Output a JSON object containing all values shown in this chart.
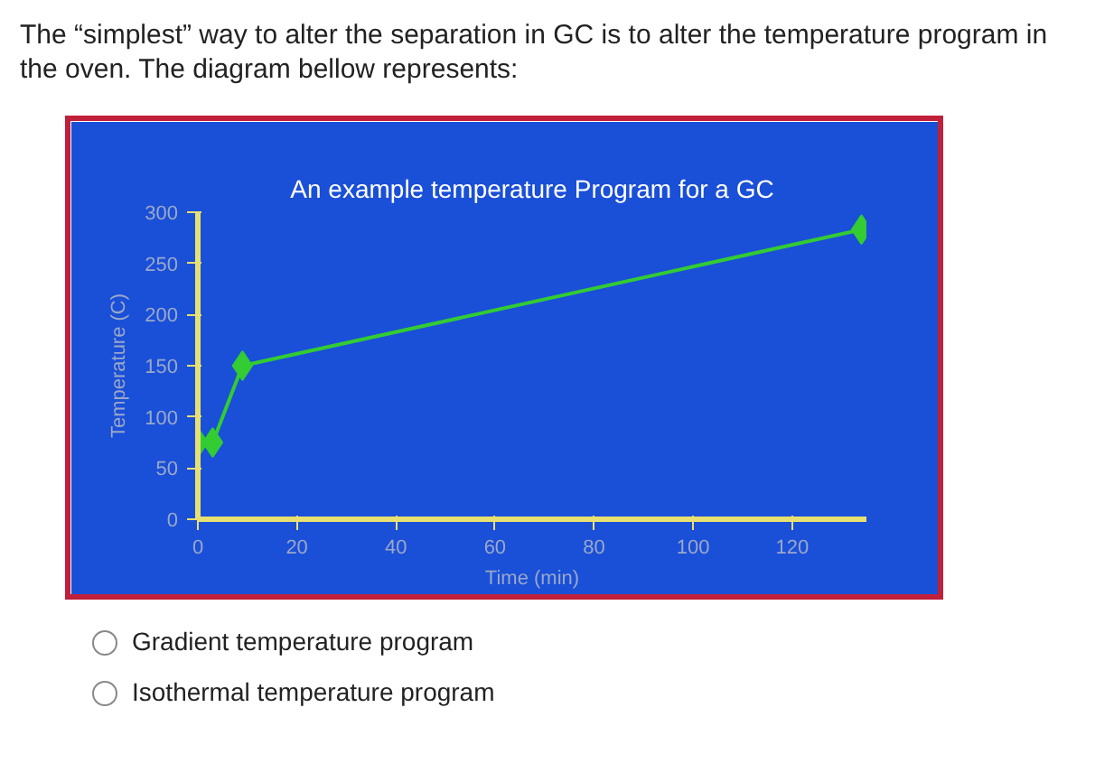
{
  "chart_data": {
    "type": "line",
    "title": "An example temperature Program for a GC",
    "xlabel": "Time (min)",
    "ylabel": "Temperature (C)",
    "x": [
      0,
      3,
      9,
      134
    ],
    "series": [
      {
        "color": "#33cc33",
        "values": [
          75,
          75,
          150,
          283
        ]
      }
    ],
    "xlim": [
      0,
      135
    ],
    "ylim": [
      0,
      300
    ],
    "xticks": [
      0,
      20,
      40,
      60,
      80,
      100,
      120
    ],
    "yticks": [
      0,
      50,
      100,
      150,
      200,
      250,
      300
    ],
    "marker": "diamond",
    "line_style": "solid",
    "grid": false,
    "annotations": [
      "The “simplest” way to alter the separation in GC is to alter the temperature program in the oven. The diagram bellow represents:",
      "Gradient temperature program",
      "Isothermal temperature program"
    ]
  }
}
